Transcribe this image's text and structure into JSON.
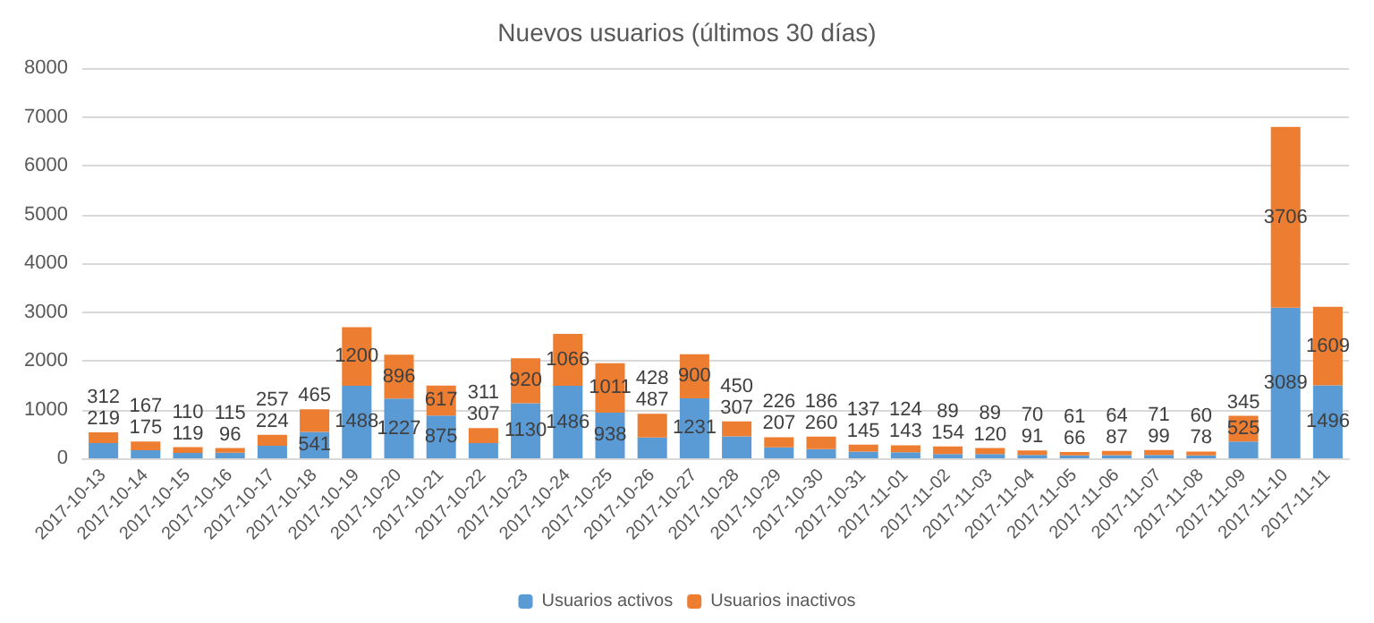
{
  "chart_data": {
    "type": "bar",
    "title": "Nuevos usuarios (últimos 30 días)",
    "stacked": true,
    "data_labels": true,
    "grid": "y",
    "legend": "bottom",
    "categories": [
      "2017-10-13",
      "2017-10-14",
      "2017-10-15",
      "2017-10-16",
      "2017-10-17",
      "2017-10-18",
      "2017-10-19",
      "2017-10-20",
      "2017-10-21",
      "2017-10-22",
      "2017-10-23",
      "2017-10-24",
      "2017-10-25",
      "2017-10-26",
      "2017-10-27",
      "2017-10-28",
      "2017-10-29",
      "2017-10-30",
      "2017-10-31",
      "2017-11-01",
      "2017-11-02",
      "2017-11-03",
      "2017-11-04",
      "2017-11-05",
      "2017-11-06",
      "2017-11-07",
      "2017-11-08",
      "2017-11-09",
      "2017-11-10",
      "2017-11-11"
    ],
    "ylim": [
      0,
      8000
    ],
    "yticks": [
      0,
      1000,
      2000,
      3000,
      4000,
      5000,
      6000,
      7000,
      8000
    ],
    "series": [
      {
        "name": "Usuarios activos",
        "color": "#5b9bd5",
        "values": [
          312,
          167,
          110,
          115,
          257,
          541,
          1488,
          1227,
          875,
          311,
          1130,
          1486,
          938,
          428,
          1231,
          450,
          226,
          186,
          137,
          124,
          89,
          89,
          70,
          61,
          64,
          71,
          60,
          345,
          3089,
          1496
        ]
      },
      {
        "name": "Usuarios inactivos",
        "color": "#ed7d31",
        "values": [
          219,
          175,
          119,
          96,
          224,
          465,
          1200,
          896,
          617,
          307,
          920,
          1066,
          1011,
          487,
          900,
          307,
          207,
          260,
          145,
          143,
          154,
          120,
          91,
          66,
          87,
          99,
          78,
          525,
          3706,
          1609
        ]
      }
    ]
  }
}
